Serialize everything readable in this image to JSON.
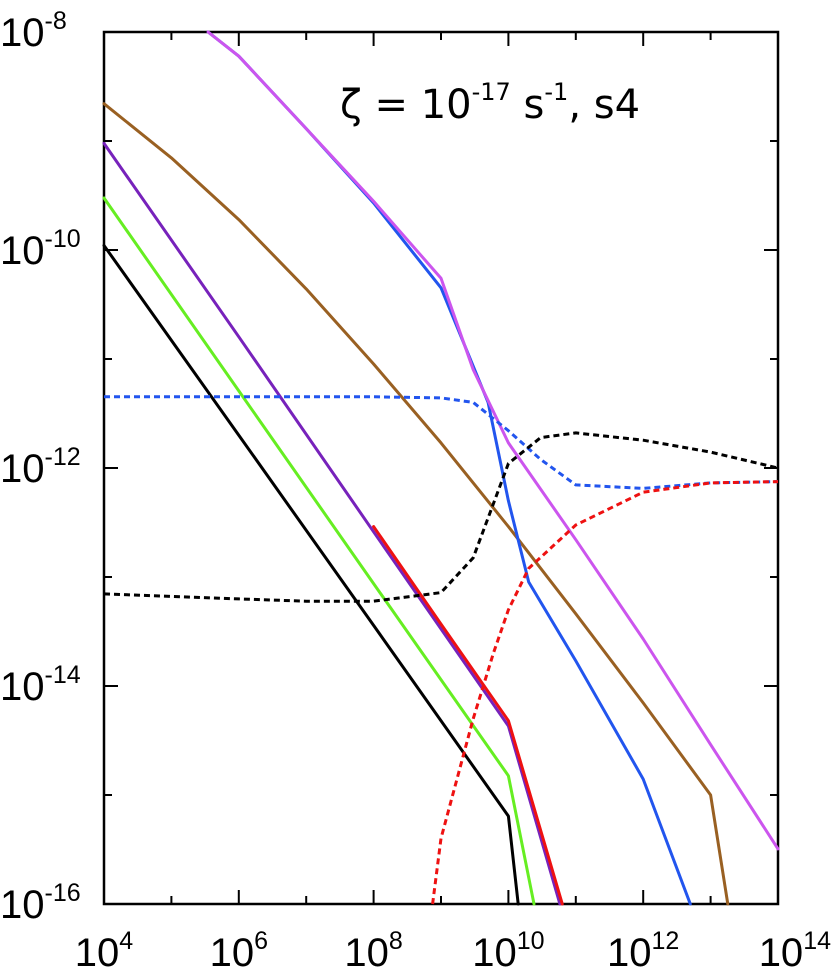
{
  "chart_data": {
    "type": "line",
    "x_scale": "log",
    "y_scale": "log",
    "xlim": [
      10000.0,
      100000000000000.0
    ],
    "ylim": [
      1e-16,
      1e-08
    ],
    "grid": false,
    "legend": "none",
    "x_ticks": [
      {
        "base": "10",
        "exp": "4",
        "value": 10000.0
      },
      {
        "base": "10",
        "exp": "6",
        "value": 1000000.0
      },
      {
        "base": "10",
        "exp": "8",
        "value": 100000000.0
      },
      {
        "base": "10",
        "exp": "10",
        "value": 10000000000.0
      },
      {
        "base": "10",
        "exp": "12",
        "value": 1000000000000.0
      },
      {
        "base": "10",
        "exp": "14",
        "value": 100000000000000.0
      }
    ],
    "y_ticks": [
      {
        "base": "10",
        "exp": "-16",
        "value": 1e-16
      },
      {
        "base": "10",
        "exp": "-14",
        "value": 1e-14
      },
      {
        "base": "10",
        "exp": "-12",
        "value": 1e-12
      },
      {
        "base": "10",
        "exp": "-10",
        "value": 1e-10
      },
      {
        "base": "10",
        "exp": "-8",
        "value": 1e-08
      }
    ],
    "annotation": {
      "zeta": "ζ = 10",
      "zeta_exp": "-17",
      "unit": " s",
      "unit_exp": "-1",
      "suffix": ", s4"
    },
    "series": [
      {
        "color": "#000000",
        "style": "solid",
        "x": [
          10000.0,
          1000000.0,
          100000000.0,
          10000000000.0,
          14000000000.0
        ],
        "y": [
          1.1e-10,
          2e-12,
          3.6e-14,
          6.4e-16,
          1e-16
        ]
      },
      {
        "color": "#66ee22",
        "style": "solid",
        "x": [
          10000.0,
          1000000.0,
          100000000.0,
          10000000000.0,
          24000000000.0
        ],
        "y": [
          3e-10,
          5.1e-12,
          8.7e-14,
          1.5e-15,
          1e-16
        ]
      },
      {
        "color": "#7722bb",
        "style": "solid",
        "x": [
          10000.0,
          1000000.0,
          100000000.0,
          10000000000.0,
          58000000000.0
        ],
        "y": [
          9.5e-10,
          1.6e-11,
          2.6e-13,
          4.3e-15,
          1e-16
        ]
      },
      {
        "color": "#ee1111",
        "style": "solid",
        "x": [
          100000000.0,
          1000000000.0,
          10000000000.0,
          63000000000.0
        ],
        "y": [
          2.9e-13,
          3.7e-14,
          4.8e-15,
          1e-16
        ]
      },
      {
        "color": "#996022",
        "style": "solid",
        "x": [
          10000.0,
          100000.0,
          1000000.0,
          10000000.0,
          100000000.0,
          1000000000.0,
          10000000000.0,
          100000000000.0,
          1000000000000.0,
          10000000000000.0,
          18000000000000.0
        ],
        "y": [
          2.2e-09,
          7e-10,
          1.9e-10,
          4.4e-11,
          9e-12,
          1.7e-12,
          2.9e-13,
          4.6e-14,
          7e-15,
          1e-15,
          1e-16
        ]
      },
      {
        "color": "#2255ee",
        "style": "solid",
        "x": [
          350000.0,
          1000000.0,
          10000000.0,
          100000000.0,
          1000000000.0,
          5000000000.0,
          10000000000.0,
          20000000000.0,
          100000000000.0,
          1000000000000.0,
          5000000000000.0
        ],
        "y": [
          1e-08,
          6e-09,
          1.3e-09,
          2.7e-10,
          4.5e-11,
          4e-12,
          5e-13,
          9e-14,
          1.7e-14,
          1.4e-15,
          1e-16
        ]
      },
      {
        "color": "#cc55ee",
        "style": "solid",
        "x": [
          350000.0,
          1000000.0,
          10000000.0,
          100000000.0,
          1000000000.0,
          3000000000.0,
          10000000000.0,
          100000000000.0,
          1000000000000.0,
          10000000000000.0,
          100000000000000.0
        ],
        "y": [
          1e-08,
          6e-09,
          1.3e-09,
          2.8e-10,
          5.5e-11,
          8e-12,
          1.7e-12,
          2.2e-13,
          2.7e-14,
          2.9e-15,
          3.2e-16
        ]
      },
      {
        "color": "#2255ee",
        "style": "dashed",
        "x": [
          10000.0,
          1000000.0,
          100000000.0,
          1000000000.0,
          3000000000.0,
          10000000000.0,
          30000000000.0,
          100000000000.0,
          1000000000000.0,
          10000000000000.0,
          100000000000000.0
        ],
        "y": [
          4.5e-12,
          4.5e-12,
          4.5e-12,
          4.4e-12,
          4e-12,
          2.2e-12,
          1.2e-12,
          7e-13,
          6.5e-13,
          7.3e-13,
          7.5e-13
        ]
      },
      {
        "color": "#000000",
        "style": "dashed",
        "x": [
          10000.0,
          1000000.0,
          10000000.0,
          100000000.0,
          1000000000.0,
          3000000000.0,
          10000000000.0,
          30000000000.0,
          100000000000.0,
          1000000000000.0,
          10000000000000.0,
          100000000000000.0
        ],
        "y": [
          7e-14,
          6.3e-14,
          6e-14,
          6e-14,
          7.2e-14,
          1.5e-13,
          1.1e-12,
          1.9e-12,
          2.1e-12,
          1.8e-12,
          1.4e-12,
          1e-12
        ]
      },
      {
        "color": "#ee1111",
        "style": "dashed",
        "x": [
          750000000.0,
          1000000000.0,
          3000000000.0,
          6000000000.0,
          10000000000.0,
          20000000000.0,
          100000000000.0,
          1000000000000.0,
          10000000000000.0,
          100000000000000.0
        ],
        "y": [
          1e-16,
          4e-16,
          5e-15,
          2e-14,
          5e-14,
          1.2e-13,
          3e-13,
          6e-13,
          7.3e-13,
          7.5e-13
        ]
      }
    ]
  }
}
